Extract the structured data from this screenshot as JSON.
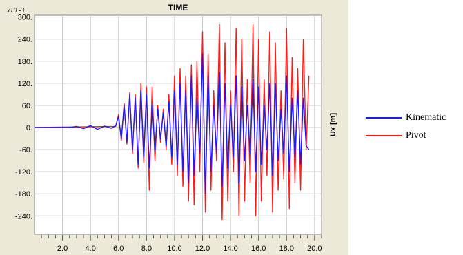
{
  "chart_data": {
    "type": "line",
    "title": "TIME",
    "ylabel": "Ux [m]",
    "xlabel": "",
    "y_exponent_label": "x10 -3",
    "xlim": [
      0,
      20.5
    ],
    "ylim": [
      -290,
      305
    ],
    "x_ticks": [
      2.0,
      4.0,
      6.0,
      8.0,
      10.0,
      12.0,
      14.0,
      16.0,
      18.0,
      20.0
    ],
    "x_tick_labels": [
      "2.0",
      "4.0",
      "6.0",
      "8.0",
      "10.0",
      "12.0",
      "14.0",
      "16.0",
      "18.0",
      "20.0"
    ],
    "y_ticks": [
      300,
      240,
      180,
      120,
      60,
      0,
      -60,
      -120,
      -180,
      -240
    ],
    "y_tick_labels": [
      "300.",
      "240.",
      "180.",
      "120.",
      "60.",
      "0.",
      "-60.",
      "-120.",
      "-180.",
      "-240."
    ],
    "grid": true,
    "legend_position": "right",
    "series": [
      {
        "name": "Kinematic",
        "color": "#1a1aff",
        "x": [
          0,
          2.5,
          3.0,
          3.5,
          4.0,
          4.5,
          5.0,
          5.5,
          5.8,
          6.0,
          6.2,
          6.4,
          6.6,
          6.8,
          7.0,
          7.2,
          7.4,
          7.6,
          7.8,
          8.0,
          8.2,
          8.4,
          8.6,
          8.8,
          9.0,
          9.2,
          9.4,
          9.6,
          9.8,
          10.0,
          10.2,
          10.4,
          10.6,
          10.8,
          11.0,
          11.2,
          11.4,
          11.6,
          11.8,
          12.0,
          12.2,
          12.4,
          12.6,
          12.8,
          13.0,
          13.2,
          13.4,
          13.6,
          13.8,
          14.0,
          14.2,
          14.4,
          14.6,
          14.8,
          15.0,
          15.2,
          15.4,
          15.6,
          15.8,
          16.0,
          16.2,
          16.4,
          16.6,
          16.8,
          17.0,
          17.2,
          17.4,
          17.6,
          17.8,
          18.0,
          18.2,
          18.4,
          18.6,
          18.8,
          19.0,
          19.2,
          19.4,
          19.6
        ],
        "y": [
          0,
          0,
          3,
          -3,
          5,
          -5,
          4,
          -2,
          5,
          30,
          -30,
          60,
          -40,
          90,
          -60,
          80,
          -100,
          100,
          -80,
          90,
          -110,
          60,
          -60,
          50,
          -30,
          40,
          -50,
          70,
          -80,
          100,
          -100,
          120,
          -120,
          100,
          -150,
          140,
          -130,
          80,
          -70,
          200,
          -180,
          140,
          -120,
          60,
          -70,
          150,
          -160,
          120,
          -110,
          60,
          -80,
          140,
          -150,
          110,
          -90,
          60,
          -70,
          130,
          -120,
          110,
          -100,
          60,
          -60,
          120,
          -130,
          120,
          -90,
          50,
          -70,
          140,
          -120,
          80,
          -80,
          100,
          -100,
          80,
          -50,
          -60
        ]
      },
      {
        "name": "Pivot",
        "color": "#ff1a1a",
        "x": [
          0,
          5.8,
          6.0,
          6.2,
          6.4,
          6.6,
          6.8,
          7.0,
          7.2,
          7.4,
          7.6,
          7.8,
          8.0,
          8.2,
          8.4,
          8.6,
          8.8,
          9.0,
          9.2,
          9.4,
          9.6,
          9.8,
          10.0,
          10.2,
          10.4,
          10.6,
          10.8,
          11.0,
          11.2,
          11.4,
          11.6,
          11.8,
          12.0,
          12.2,
          12.4,
          12.6,
          12.8,
          13.0,
          13.2,
          13.4,
          13.6,
          13.8,
          14.0,
          14.2,
          14.4,
          14.6,
          14.8,
          15.0,
          15.2,
          15.4,
          15.6,
          15.8,
          16.0,
          16.2,
          16.4,
          16.6,
          16.8,
          17.0,
          17.2,
          17.4,
          17.6,
          17.8,
          18.0,
          18.2,
          18.4,
          18.6,
          18.8,
          19.0,
          19.2,
          19.4,
          19.6
        ],
        "y": [
          0,
          3,
          35,
          -35,
          65,
          -45,
          95,
          -70,
          90,
          -110,
          120,
          -95,
          110,
          -170,
          110,
          -90,
          60,
          -40,
          50,
          -60,
          90,
          -100,
          140,
          -130,
          160,
          -160,
          140,
          -200,
          170,
          -210,
          180,
          -120,
          260,
          -230,
          200,
          -170,
          100,
          -90,
          280,
          -250,
          230,
          -200,
          100,
          -120,
          270,
          -240,
          240,
          -200,
          130,
          -150,
          280,
          -240,
          240,
          -200,
          130,
          -130,
          260,
          -230,
          230,
          -170,
          100,
          -140,
          270,
          -220,
          190,
          -150,
          160,
          -170,
          240,
          -60,
          140
        ]
      }
    ]
  }
}
